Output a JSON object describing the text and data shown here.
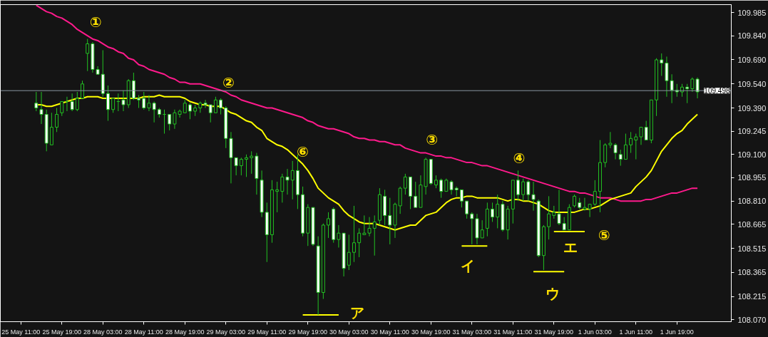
{
  "chart_data": {
    "type": "candlestick",
    "categories": [
      "25 May 11:00",
      null,
      null,
      null,
      null,
      null,
      null,
      null,
      "25 May 19:00",
      null,
      null,
      null,
      null,
      null,
      null,
      null,
      "28 May 03:00",
      null,
      null,
      null,
      null,
      null,
      null,
      null,
      "28 May 11:00",
      null,
      null,
      null,
      null,
      null,
      null,
      null,
      "28 May 19:00",
      null,
      null,
      null,
      null,
      null,
      null,
      null,
      "29 May 03:00",
      null,
      null,
      null,
      null,
      null,
      null,
      null,
      "29 May 11:00",
      null,
      null,
      null,
      null,
      null,
      null,
      null,
      "29 May 19:00",
      null,
      null,
      null,
      null,
      null,
      null,
      null,
      "30 May 03:00",
      null,
      null,
      null,
      null,
      null,
      null,
      null,
      "30 May 11:00",
      null,
      null,
      null,
      null,
      null,
      null,
      null,
      "30 May 19:00",
      null,
      null,
      null,
      null,
      null,
      null,
      null,
      "31 May 03:00",
      null,
      null,
      null,
      null,
      null,
      null,
      null,
      "31 May 11:00",
      null,
      null,
      null,
      null,
      null,
      null,
      null,
      "31 May 19:00",
      null,
      null,
      null,
      null,
      null,
      null,
      null,
      "1 Jun 03:00",
      null,
      null,
      null,
      null,
      null,
      null,
      null,
      "1 Jun 11:00",
      null,
      null,
      null,
      null,
      null,
      null,
      null,
      "1 Jun 19:00",
      null,
      null,
      null,
      null
    ],
    "ohlc": [
      null,
      null,
      null,
      [
        109.42,
        109.49,
        109.37,
        109.39
      ],
      [
        109.38,
        109.49,
        109.29,
        109.35
      ],
      [
        109.35,
        109.38,
        109.12,
        109.17
      ],
      [
        109.16,
        109.36,
        109.16,
        109.27
      ],
      [
        109.27,
        109.39,
        109.24,
        109.35
      ],
      [
        109.36,
        109.43,
        109.34,
        109.43
      ],
      [
        109.43,
        109.46,
        109.37,
        109.43
      ],
      [
        109.43,
        109.48,
        109.37,
        109.38
      ],
      [
        109.38,
        109.49,
        109.37,
        109.45
      ],
      [
        109.45,
        109.56,
        109.45,
        109.54
      ],
      [
        109.73,
        109.82,
        109.62,
        109.79
      ],
      [
        109.79,
        109.8,
        109.61,
        109.63
      ],
      [
        109.63,
        109.65,
        109.6,
        109.6
      ],
      [
        109.6,
        109.75,
        109.46,
        109.48
      ],
      [
        109.48,
        109.53,
        109.31,
        109.38
      ],
      [
        109.38,
        109.45,
        109.36,
        109.45
      ],
      [
        109.43,
        109.48,
        109.37,
        109.43
      ],
      [
        109.44,
        109.5,
        109.37,
        109.41
      ],
      [
        109.41,
        109.57,
        109.39,
        109.56
      ],
      [
        109.56,
        109.61,
        109.44,
        109.45
      ],
      [
        109.45,
        109.47,
        109.39,
        109.44
      ],
      [
        109.45,
        109.49,
        109.38,
        109.39
      ],
      [
        109.39,
        109.47,
        109.37,
        109.42
      ],
      [
        109.42,
        109.43,
        109.3,
        109.38
      ],
      [
        109.38,
        109.39,
        109.33,
        109.35
      ],
      [
        109.35,
        109.38,
        109.23,
        109.35
      ],
      [
        109.35,
        109.35,
        109.25,
        109.29
      ],
      [
        109.29,
        109.38,
        109.26,
        109.36
      ],
      [
        109.35,
        109.38,
        109.33,
        109.37
      ],
      [
        109.36,
        109.44,
        109.36,
        109.42
      ],
      [
        109.41,
        109.42,
        109.32,
        109.37
      ],
      [
        109.37,
        109.41,
        109.34,
        109.39
      ],
      [
        109.39,
        109.43,
        109.36,
        109.42
      ],
      [
        109.42,
        109.44,
        109.39,
        109.41
      ],
      [
        109.41,
        109.41,
        109.3,
        109.36
      ],
      [
        109.36,
        109.46,
        109.36,
        109.44
      ],
      [
        109.44,
        109.45,
        109.35,
        109.39
      ],
      [
        109.39,
        109.4,
        109.14,
        109.2
      ],
      [
        109.2,
        109.24,
        108.92,
        109.08
      ],
      [
        109.08,
        109.08,
        108.97,
        109.03
      ],
      [
        109.03,
        109.08,
        108.97,
        109.07
      ],
      [
        109.07,
        109.1,
        108.96,
        109.08
      ],
      [
        109.08,
        109.12,
        108.98,
        109.09
      ],
      [
        109.09,
        109.11,
        108.85,
        108.95
      ],
      [
        108.94,
        109.0,
        108.71,
        108.74
      ],
      [
        108.74,
        108.8,
        108.43,
        108.6
      ],
      [
        108.6,
        108.94,
        108.55,
        108.88
      ],
      [
        108.87,
        108.93,
        108.74,
        108.88
      ],
      [
        108.87,
        108.98,
        108.8,
        108.96
      ],
      [
        108.96,
        109.01,
        108.85,
        108.94
      ],
      [
        108.94,
        109.06,
        108.82,
        109.0
      ],
      [
        109.0,
        109.1,
        108.76,
        108.85
      ],
      [
        108.85,
        108.9,
        108.59,
        108.61
      ],
      [
        108.61,
        108.79,
        108.53,
        108.77
      ],
      [
        108.77,
        108.77,
        108.53,
        108.54
      ],
      [
        108.53,
        108.59,
        108.1,
        108.24
      ],
      [
        108.24,
        108.67,
        108.2,
        108.66
      ],
      [
        108.66,
        108.74,
        108.58,
        108.7
      ],
      [
        108.76,
        108.77,
        108.55,
        108.57
      ],
      [
        108.57,
        108.66,
        108.52,
        108.61
      ],
      [
        108.61,
        108.61,
        108.34,
        108.39
      ],
      [
        108.41,
        108.6,
        108.38,
        108.49
      ],
      [
        108.49,
        108.78,
        108.43,
        108.55
      ],
      [
        108.55,
        108.64,
        108.46,
        108.61
      ],
      [
        108.6,
        108.72,
        108.6,
        108.61
      ],
      [
        108.61,
        108.71,
        108.59,
        108.64
      ],
      [
        108.64,
        108.72,
        108.47,
        108.68
      ],
      [
        108.69,
        108.89,
        108.66,
        108.85
      ],
      [
        108.84,
        108.88,
        108.66,
        108.72
      ],
      [
        108.72,
        108.83,
        108.54,
        108.66
      ],
      [
        108.66,
        108.8,
        108.58,
        108.79
      ],
      [
        108.78,
        108.9,
        108.73,
        108.89
      ],
      [
        108.89,
        108.98,
        108.85,
        108.96
      ],
      [
        108.96,
        108.96,
        108.76,
        108.84
      ],
      [
        108.84,
        108.93,
        108.77,
        108.77
      ],
      [
        108.77,
        108.97,
        108.77,
        108.91
      ],
      [
        108.9,
        109.08,
        108.85,
        109.07
      ],
      [
        109.07,
        109.07,
        108.91,
        108.92
      ],
      [
        108.91,
        108.97,
        108.89,
        108.94
      ],
      [
        108.94,
        108.95,
        108.83,
        108.87
      ],
      [
        108.87,
        108.95,
        108.87,
        108.94
      ],
      [
        108.93,
        108.94,
        108.85,
        108.88
      ],
      [
        108.89,
        108.9,
        108.84,
        108.88
      ],
      [
        108.88,
        108.88,
        108.77,
        108.81
      ],
      [
        108.81,
        108.81,
        108.7,
        108.73
      ],
      [
        108.73,
        108.74,
        108.54,
        108.7
      ],
      [
        108.7,
        108.73,
        108.54,
        108.58
      ],
      [
        108.58,
        108.69,
        108.58,
        108.63
      ],
      [
        108.64,
        108.8,
        108.59,
        108.76
      ],
      [
        108.76,
        108.8,
        108.68,
        108.71
      ],
      [
        108.71,
        108.85,
        108.64,
        108.79
      ],
      [
        108.79,
        108.81,
        108.62,
        108.63
      ],
      [
        108.63,
        108.78,
        108.57,
        108.76
      ],
      [
        108.76,
        108.94,
        108.67,
        108.94
      ],
      [
        108.94,
        109.0,
        108.81,
        108.85
      ],
      [
        108.85,
        108.95,
        108.81,
        108.93
      ],
      [
        108.93,
        108.94,
        108.81,
        108.85
      ],
      [
        108.85,
        108.93,
        108.75,
        108.82
      ],
      [
        108.81,
        108.82,
        108.46,
        108.47
      ],
      [
        108.47,
        108.66,
        108.38,
        108.65
      ],
      [
        108.65,
        108.84,
        108.57,
        108.73
      ],
      [
        108.72,
        108.78,
        108.7,
        108.74
      ],
      [
        108.73,
        108.88,
        108.66,
        108.67
      ],
      [
        108.67,
        108.71,
        108.63,
        108.63
      ],
      [
        108.63,
        108.79,
        108.63,
        108.77
      ],
      [
        108.78,
        108.85,
        108.77,
        108.84
      ],
      [
        108.8,
        108.83,
        108.76,
        108.77
      ],
      [
        108.76,
        108.83,
        108.75,
        108.77
      ],
      [
        108.76,
        108.79,
        108.71,
        108.79
      ],
      [
        108.79,
        108.94,
        108.78,
        108.87
      ],
      [
        108.87,
        109.19,
        108.74,
        109.05
      ],
      [
        109.05,
        109.17,
        109.02,
        109.16
      ],
      [
        109.16,
        109.24,
        109.14,
        109.17
      ],
      [
        109.16,
        109.17,
        109.07,
        109.11
      ],
      [
        109.1,
        109.13,
        109.03,
        109.07
      ],
      [
        109.07,
        109.23,
        109.07,
        109.16
      ],
      [
        109.16,
        109.24,
        109.11,
        109.2
      ],
      [
        109.19,
        109.23,
        109.07,
        109.21
      ],
      [
        109.21,
        109.27,
        109.16,
        109.27
      ],
      [
        109.27,
        109.31,
        109.19,
        109.19
      ],
      [
        109.19,
        109.44,
        109.17,
        109.44
      ],
      [
        109.44,
        109.7,
        109.34,
        109.69
      ],
      [
        109.69,
        109.73,
        109.59,
        109.67
      ],
      [
        109.67,
        109.71,
        109.46,
        109.56
      ],
      [
        109.56,
        109.6,
        109.42,
        109.5
      ],
      [
        109.5,
        109.54,
        109.46,
        109.49
      ],
      [
        109.49,
        109.54,
        109.46,
        109.52
      ],
      [
        109.52,
        109.54,
        109.42,
        109.51
      ],
      [
        109.51,
        109.58,
        109.49,
        109.57
      ],
      [
        109.57,
        109.58,
        109.45,
        109.49
      ]
    ],
    "series": [
      {
        "type": "line",
        "color": "#ff1a8c",
        "values": [
          null,
          null,
          null,
          110.03,
          110.01,
          109.99,
          109.98,
          109.96,
          109.95,
          109.93,
          109.91,
          109.88,
          109.86,
          109.84,
          109.82,
          109.81,
          109.79,
          109.77,
          109.76,
          109.74,
          109.73,
          109.7,
          109.69,
          109.66,
          109.65,
          109.63,
          109.62,
          109.61,
          109.6,
          109.58,
          109.57,
          109.55,
          109.55,
          109.54,
          109.54,
          109.54,
          109.53,
          109.52,
          109.51,
          109.5,
          109.49,
          109.47,
          109.46,
          109.44,
          109.43,
          109.42,
          109.41,
          109.4,
          109.39,
          109.39,
          109.38,
          109.37,
          109.36,
          109.35,
          109.34,
          109.33,
          109.31,
          109.3,
          109.28,
          109.27,
          109.26,
          109.26,
          109.25,
          109.24,
          109.23,
          109.21,
          109.2,
          109.2,
          109.19,
          109.19,
          109.18,
          109.18,
          109.17,
          109.16,
          109.16,
          109.14,
          109.13,
          109.12,
          109.11,
          109.11,
          109.1,
          109.09,
          109.09,
          109.08,
          109.08,
          109.07,
          109.06,
          109.05,
          109.05,
          109.04,
          109.03,
          109.03,
          109.02,
          109.01,
          109.0,
          108.99,
          108.98,
          108.97,
          108.96,
          108.95,
          108.94,
          108.93,
          108.92,
          108.91,
          108.9,
          108.89,
          108.88,
          108.87,
          108.87,
          108.86,
          108.86,
          108.85,
          108.84,
          108.83,
          108.83,
          108.83,
          108.82,
          108.81,
          108.81,
          108.81,
          108.81,
          108.81,
          108.82,
          108.82,
          108.83,
          108.84,
          108.85,
          108.86,
          108.86,
          108.87,
          108.88,
          108.89,
          108.89
        ]
      },
      {
        "type": "line",
        "color": "#ffff00",
        "values": [
          null,
          null,
          null,
          109.41,
          109.41,
          109.4,
          109.4,
          109.41,
          109.42,
          109.43,
          109.44,
          109.45,
          109.45,
          109.46,
          109.46,
          109.46,
          109.45,
          109.45,
          109.45,
          109.45,
          109.45,
          109.45,
          109.45,
          109.45,
          109.46,
          109.46,
          109.46,
          109.47,
          109.46,
          109.46,
          109.46,
          109.46,
          109.45,
          109.43,
          109.42,
          109.41,
          109.41,
          109.4,
          109.4,
          109.4,
          109.38,
          109.36,
          109.35,
          109.33,
          109.31,
          109.3,
          109.27,
          109.25,
          109.2,
          109.18,
          109.16,
          109.15,
          109.13,
          109.1,
          109.07,
          109.04,
          109.0,
          108.95,
          108.89,
          108.86,
          108.83,
          108.81,
          108.79,
          108.75,
          108.72,
          108.7,
          108.68,
          108.67,
          108.67,
          108.67,
          108.66,
          108.65,
          108.64,
          108.63,
          108.64,
          108.65,
          108.66,
          108.66,
          108.69,
          108.72,
          108.73,
          108.74,
          108.77,
          108.8,
          108.82,
          108.83,
          108.83,
          108.84,
          108.84,
          108.83,
          108.83,
          108.83,
          108.83,
          108.83,
          108.82,
          108.81,
          108.82,
          108.82,
          108.81,
          108.81,
          108.8,
          108.79,
          108.77,
          108.75,
          108.74,
          108.74,
          108.74,
          108.74,
          108.74,
          108.75,
          108.76,
          108.76,
          108.77,
          108.78,
          108.8,
          108.82,
          108.83,
          108.84,
          108.85,
          108.86,
          108.9,
          108.93,
          108.96,
          109.0,
          109.06,
          109.12,
          109.16,
          109.2,
          109.23,
          109.25,
          109.29,
          109.32,
          109.35
        ]
      },
      {
        "type": "line",
        "color": "#ffff00",
        "values": [
          null,
          null,
          null,
          null,
          null,
          null,
          null,
          null,
          null,
          null,
          null,
          null,
          null,
          null,
          null,
          null,
          null,
          null,
          null,
          null,
          null,
          null,
          null,
          null,
          null,
          null,
          null,
          null,
          null,
          null,
          null,
          null,
          null,
          null,
          null,
          null,
          null,
          null,
          null,
          null,
          null,
          null,
          null,
          null,
          null,
          null,
          null,
          null,
          null,
          null,
          null,
          null,
          null,
          null,
          null,
          108.1,
          108.1,
          108.1,
          108.1,
          108.1,
          108.1,
          108.1,
          108.1,
          null,
          null,
          null,
          null,
          null,
          null,
          null,
          null,
          null,
          null,
          null,
          null,
          null,
          null,
          null,
          null,
          null,
          null,
          null,
          null,
          null,
          null,
          null,
          null,
          null,
          null,
          null,
          null,
          null,
          null,
          null,
          null,
          null,
          null,
          null,
          null,
          null,
          null,
          null,
          null,
          null,
          null,
          null,
          null,
          null,
          null,
          null,
          null,
          null,
          null,
          null,
          null,
          null,
          null,
          null,
          null,
          null,
          null,
          null,
          null,
          null,
          null,
          null,
          null,
          null,
          null,
          null,
          null,
          null,
          null
        ]
      },
      {
        "type": "line",
        "color": "#ffff00",
        "values": [
          null,
          null,
          null,
          null,
          null,
          null,
          null,
          null,
          null,
          null,
          null,
          null,
          null,
          null,
          null,
          null,
          null,
          null,
          null,
          null,
          null,
          null,
          null,
          null,
          null,
          null,
          null,
          null,
          null,
          null,
          null,
          null,
          null,
          null,
          null,
          null,
          null,
          null,
          null,
          null,
          null,
          null,
          null,
          null,
          null,
          null,
          null,
          null,
          null,
          null,
          null,
          null,
          null,
          null,
          null,
          null,
          null,
          null,
          null,
          null,
          null,
          null,
          null,
          null,
          null,
          null,
          null,
          null,
          null,
          null,
          null,
          null,
          null,
          null,
          null,
          null,
          null,
          null,
          null,
          null,
          null,
          null,
          null,
          null,
          null,
          null,
          108.53,
          108.53,
          108.53,
          108.53,
          108.53,
          108.53,
          null,
          null,
          null,
          null,
          null,
          null,
          null,
          null,
          null,
          null,
          null,
          null,
          null,
          null,
          null,
          null,
          null,
          null,
          null,
          null,
          null,
          null,
          null,
          null,
          null,
          null,
          null,
          null,
          null,
          null,
          null,
          null,
          null,
          null,
          null,
          null,
          null,
          null,
          null,
          null,
          null
        ]
      },
      {
        "type": "line",
        "color": "#ffff00",
        "values": [
          null,
          null,
          null,
          null,
          null,
          null,
          null,
          null,
          null,
          null,
          null,
          null,
          null,
          null,
          null,
          null,
          null,
          null,
          null,
          null,
          null,
          null,
          null,
          null,
          null,
          null,
          null,
          null,
          null,
          null,
          null,
          null,
          null,
          null,
          null,
          null,
          null,
          null,
          null,
          null,
          null,
          null,
          null,
          null,
          null,
          null,
          null,
          null,
          null,
          null,
          null,
          null,
          null,
          null,
          null,
          null,
          null,
          null,
          null,
          null,
          null,
          null,
          null,
          null,
          null,
          null,
          null,
          null,
          null,
          null,
          null,
          null,
          null,
          null,
          null,
          null,
          null,
          null,
          null,
          null,
          null,
          null,
          null,
          null,
          null,
          null,
          null,
          null,
          null,
          null,
          null,
          null,
          null,
          null,
          null,
          null,
          null,
          null,
          null,
          null,
          108.37,
          108.37,
          108.37,
          108.37,
          108.37,
          108.37,
          108.37,
          null,
          null,
          null,
          null,
          null,
          null,
          null,
          null,
          null,
          null,
          null,
          null,
          null,
          null,
          null,
          null,
          null,
          null,
          null,
          null,
          null,
          null,
          null,
          null,
          null,
          null
        ]
      },
      {
        "type": "line",
        "color": "#ffff00",
        "values": [
          null,
          null,
          null,
          null,
          null,
          null,
          null,
          null,
          null,
          null,
          null,
          null,
          null,
          null,
          null,
          null,
          null,
          null,
          null,
          null,
          null,
          null,
          null,
          null,
          null,
          null,
          null,
          null,
          null,
          null,
          null,
          null,
          null,
          null,
          null,
          null,
          null,
          null,
          null,
          null,
          null,
          null,
          null,
          null,
          null,
          null,
          null,
          null,
          null,
          null,
          null,
          null,
          null,
          null,
          null,
          null,
          null,
          null,
          null,
          null,
          null,
          null,
          null,
          null,
          null,
          null,
          null,
          null,
          null,
          null,
          null,
          null,
          null,
          null,
          null,
          null,
          null,
          null,
          null,
          null,
          null,
          null,
          null,
          null,
          null,
          null,
          null,
          null,
          null,
          null,
          null,
          null,
          null,
          null,
          null,
          null,
          null,
          null,
          null,
          null,
          null,
          null,
          null,
          null,
          108.62,
          108.62,
          108.62,
          108.62,
          108.62,
          108.62,
          108.62,
          null,
          null,
          null,
          null,
          null,
          null,
          null,
          null,
          null,
          null,
          null,
          null,
          null,
          null,
          null,
          null,
          null,
          null,
          null,
          null,
          null,
          null
        ]
      }
    ],
    "ylim": [
      108.058,
      110.034
    ],
    "yticks": [
      {
        "value": 109.985,
        "label": "109.985"
      },
      {
        "value": 109.84,
        "label": "109.840"
      },
      {
        "value": 109.69,
        "label": "109.690"
      },
      {
        "value": 109.54,
        "label": "109.540"
      },
      {
        "value": 109.39,
        "label": "109.390"
      },
      {
        "value": 109.245,
        "label": "109.245"
      },
      {
        "value": 109.1,
        "label": "109.100"
      },
      {
        "value": 108.955,
        "label": "108.955"
      },
      {
        "value": 108.81,
        "label": "108.810"
      },
      {
        "value": 108.665,
        "label": "108.665"
      },
      {
        "value": 108.515,
        "label": "108.515"
      },
      {
        "value": 108.365,
        "label": "108.365"
      },
      {
        "value": 108.215,
        "label": "108.215"
      },
      {
        "value": 108.07,
        "label": "108.070"
      }
    ],
    "ref_lines": [
      {
        "axis": "y",
        "value": 109.498,
        "label": "109.498",
        "color": "#8795a1"
      }
    ],
    "annotations": [
      "①",
      "②",
      "③",
      "④",
      "⑤",
      "⑥",
      "ア",
      "イ",
      "ウ",
      "エ"
    ],
    "grid": false
  }
}
